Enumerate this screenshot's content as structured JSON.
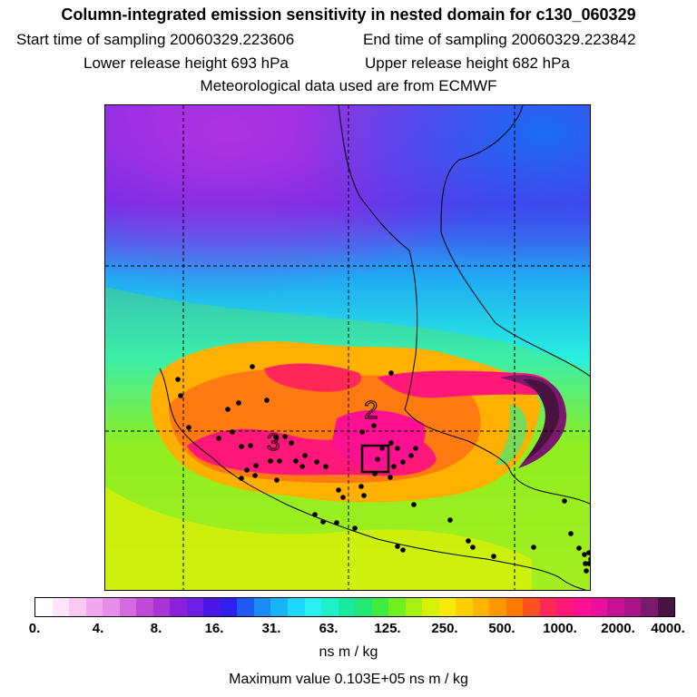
{
  "header": {
    "title": "Column-integrated emission sensitivity in nested domain for c130_060329",
    "start_label": "Start time of sampling 20060329.223606",
    "end_label": "End time of sampling 20060329.223842",
    "lower_label": "Lower release height  693 hPa",
    "upper_label": "Upper release height  682 hPa",
    "met_label": "Meteorological data used are from ECMWF"
  },
  "map": {
    "contour_labels": [
      "2",
      "3"
    ],
    "receptor_marker": "receptor-box"
  },
  "colorbar": {
    "colors": [
      "#ffffff",
      "#fde6fb",
      "#f8c9f5",
      "#f2a8f0",
      "#e68ee9",
      "#d46ce0",
      "#c04ad8",
      "#a933d4",
      "#8a20d8",
      "#6f1ee4",
      "#4b16e8",
      "#2f20f0",
      "#2058f4",
      "#1a8cf6",
      "#18b4f8",
      "#1cd8fa",
      "#28f0f0",
      "#20f0c8",
      "#18e8a0",
      "#20e870",
      "#40ec40",
      "#70f020",
      "#a8f010",
      "#d8f008",
      "#f8ea08",
      "#ffd000",
      "#ffb400",
      "#ff9800",
      "#ff7800",
      "#ff5020",
      "#ff2858",
      "#ff1878",
      "#ff1090",
      "#e8109c",
      "#c81094",
      "#a81488",
      "#7a1a6c",
      "#4a1240"
    ],
    "tick_labels": [
      "0.",
      "4.",
      "8.",
      "16.",
      "31.",
      "63.",
      "125.",
      "250.",
      "500.",
      "1000.",
      "2000.",
      "4000."
    ],
    "units": "ns m / kg"
  },
  "footer": {
    "max_value": "Maximum value  0.103E+05 ns m / kg"
  }
}
